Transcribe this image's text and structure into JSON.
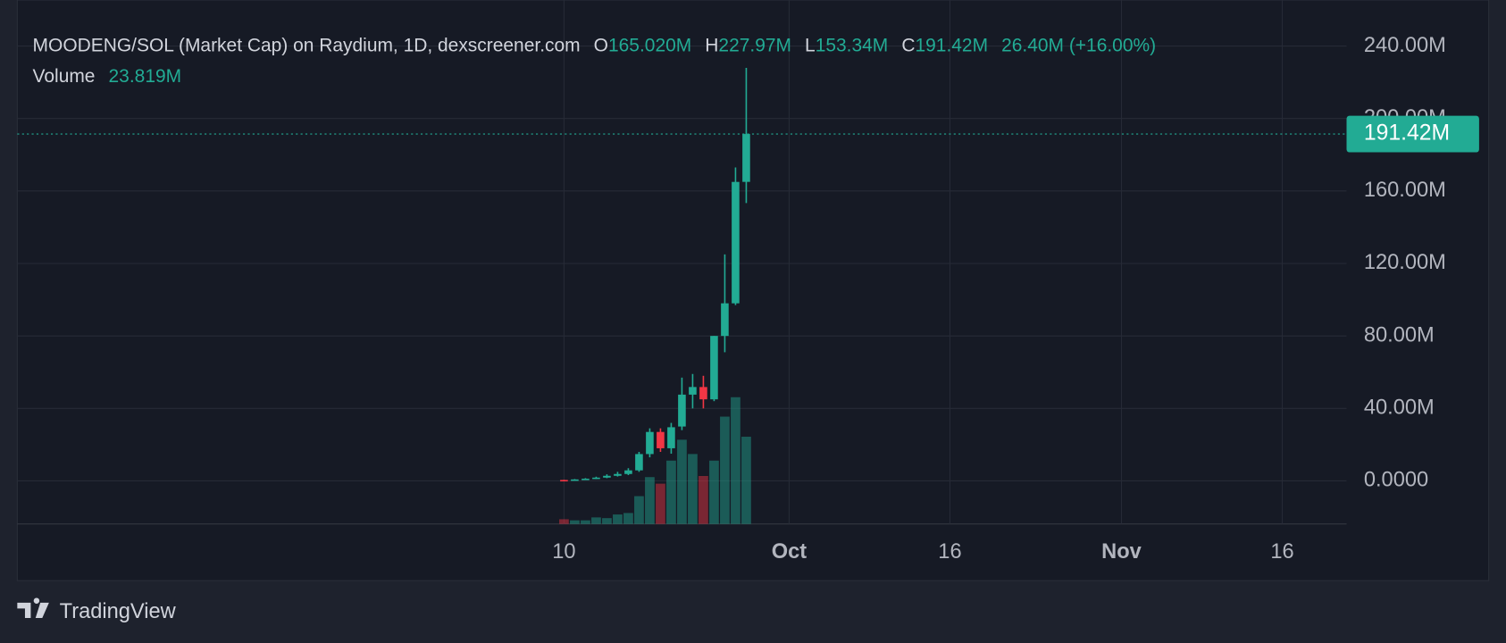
{
  "chart_data": {
    "type": "candlestick",
    "title": "MOODENG/SOL (Market Cap) on Raydium, 1D, dexscreener.com",
    "legend": [
      {
        "label": "O",
        "value": "165.020M"
      },
      {
        "label": "H",
        "value": "227.97M"
      },
      {
        "label": "L",
        "value": "153.34M"
      },
      {
        "label": "C",
        "value": "191.42M"
      }
    ],
    "change": "26.40M (+16.00%)",
    "volume_label": "Volume",
    "volume_value": "23.819M",
    "x": [
      "09-10",
      "09-11",
      "09-12",
      "09-13",
      "09-14",
      "09-15",
      "09-16",
      "09-17",
      "09-18",
      "09-19",
      "09-20",
      "09-21",
      "09-22",
      "09-23",
      "09-24",
      "09-25",
      "09-26",
      "09-27"
    ],
    "open": [
      0.5,
      0.4,
      0.8,
      1.2,
      1.8,
      2.8,
      3.8,
      5.8,
      14.8,
      27,
      18,
      30,
      47.6,
      51.8,
      45,
      80,
      98,
      165.02
    ],
    "high": [
      0.6,
      1.0,
      1.5,
      2.3,
      3.6,
      5,
      7,
      16,
      29,
      29,
      32,
      57,
      59,
      58,
      80,
      125,
      173,
      227.97
    ],
    "low": [
      0.2,
      0.3,
      0.6,
      1.0,
      1.5,
      2.4,
      3.2,
      5,
      13,
      16,
      15,
      28,
      40,
      40,
      44,
      71,
      97,
      153.34
    ],
    "close": [
      0.3,
      0.8,
      1.2,
      1.8,
      2.8,
      3.8,
      5.8,
      14.8,
      27,
      18,
      29.6,
      47.6,
      51.8,
      45,
      80,
      98,
      165,
      191.42
    ],
    "volume": [
      1.3,
      1.0,
      1.0,
      1.8,
      1.6,
      2.6,
      3.0,
      7.6,
      12.8,
      11.0,
      17.3,
      23.0,
      19.1,
      13.1,
      17.3,
      29.3,
      34.6,
      23.819
    ],
    "up_color": "#22ab94",
    "down_color": "#f23645",
    "ylim": [
      -23.8,
      265.4
    ],
    "yticks": [
      {
        "value": 0,
        "label": "0.0000"
      },
      {
        "value": 40,
        "label": "40.00M"
      },
      {
        "value": 80,
        "label": "80.00M"
      },
      {
        "value": 120,
        "label": "120.00M"
      },
      {
        "value": 160,
        "label": "160.00M"
      },
      {
        "value": 200,
        "label": "200.00M"
      },
      {
        "value": 240,
        "label": "240.00M"
      }
    ],
    "xlim": [
      "07-21",
      "11-22"
    ],
    "xticks": [
      {
        "value": "09-10",
        "label": "10"
      },
      {
        "value": "10-01",
        "label": "Oct"
      },
      {
        "value": "10-16",
        "label": "16"
      },
      {
        "value": "11-01",
        "label": "Nov"
      },
      {
        "value": "11-16",
        "label": "16"
      }
    ],
    "volume_lim": [
      0,
      143
    ],
    "last_price_label": "191.42M",
    "grid": true
  },
  "brand": "TradingView"
}
